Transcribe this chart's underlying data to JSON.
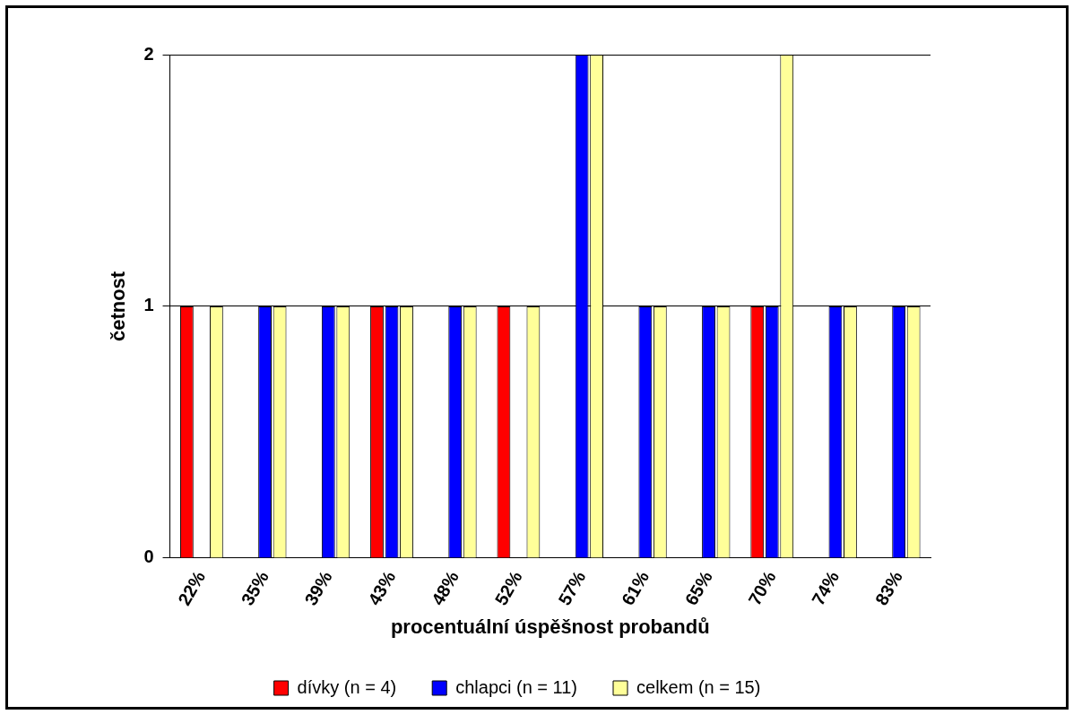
{
  "chart_data": {
    "type": "bar",
    "xlabel": "procentuální úspěšnost probandů",
    "ylabel": "četnost",
    "categories": [
      "22%",
      "35%",
      "39%",
      "43%",
      "48%",
      "52%",
      "57%",
      "61%",
      "65%",
      "70%",
      "74%",
      "83%"
    ],
    "series": [
      {
        "name": "dívky (n = 4)",
        "color": "#ff0000",
        "values": [
          1,
          0,
          0,
          1,
          0,
          1,
          0,
          0,
          0,
          1,
          0,
          0
        ]
      },
      {
        "name": "chlapci (n = 11)",
        "color": "#0000ff",
        "values": [
          0,
          1,
          1,
          1,
          1,
          0,
          2,
          1,
          1,
          1,
          1,
          1
        ]
      },
      {
        "name": "celkem (n = 15)",
        "color": "#ffff99",
        "values": [
          1,
          1,
          1,
          1,
          1,
          1,
          2,
          1,
          1,
          2,
          1,
          1
        ]
      }
    ],
    "ylim": [
      0,
      2
    ],
    "yticks": [
      0,
      1,
      2
    ],
    "grid": "y",
    "legend": "bottom"
  }
}
